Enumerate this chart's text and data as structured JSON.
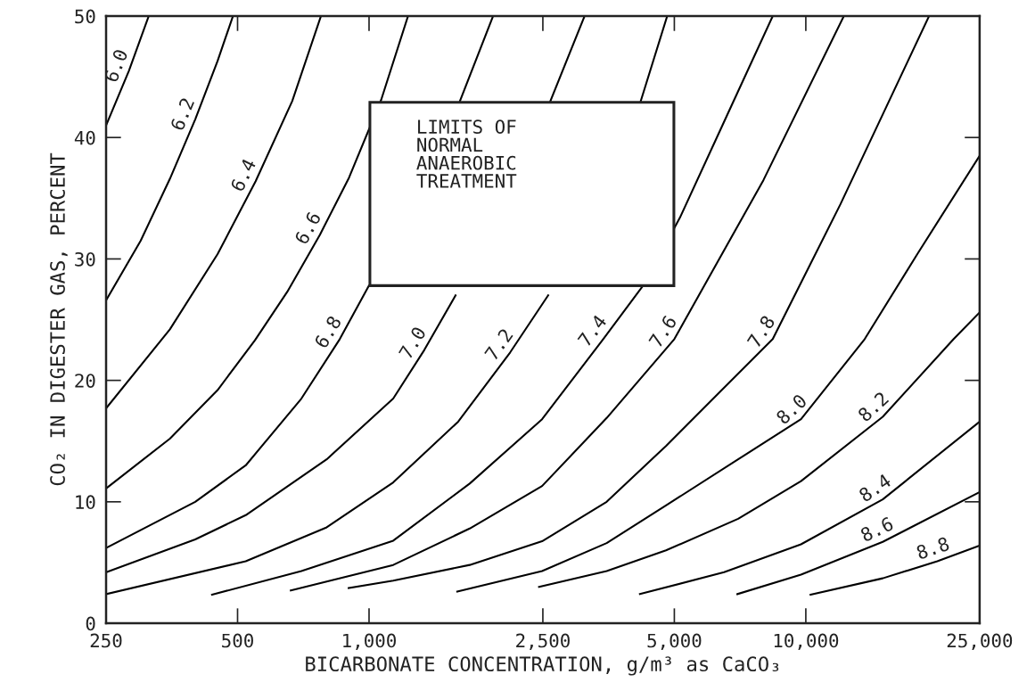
{
  "chart_data": {
    "type": "line",
    "xlabel": "BICARBONATE CONCENTRATION, g/m³ as CaCO₃",
    "ylabel": "CO₂ IN DIGESTER GAS, PERCENT",
    "log": "x",
    "xlim": [
      250,
      25000
    ],
    "xticks": [
      {
        "value": 250,
        "label": "250"
      },
      {
        "value": 500,
        "label": "500"
      },
      {
        "value": 1000,
        "label": "1,000"
      },
      {
        "value": 2500,
        "label": "2,500"
      },
      {
        "value": 5000,
        "label": "5,000"
      },
      {
        "value": 10000,
        "label": "10,000"
      },
      {
        "value": 25000,
        "label": "25,000"
      }
    ],
    "ylim": [
      0,
      50
    ],
    "yticks": [
      0,
      10,
      20,
      30,
      40,
      50
    ],
    "grid": false,
    "legend": false,
    "marker": "none",
    "line_style": "solid",
    "annotations": [
      "LIMITS OF\nNORMAL\nANAEROBIC\nTREATMENT"
    ],
    "series": [
      {
        "name": "6.0",
        "color": "#000000",
        "x": [
          250,
          282,
          313
        ],
        "values": [
          41.0,
          45.5,
          50
        ]
      },
      {
        "name": "6.2",
        "color": "#000000",
        "x": [
          250,
          300,
          350,
          400,
          450,
          488
        ],
        "values": [
          26.6,
          31.5,
          36.6,
          41.5,
          46.3,
          50
        ]
      },
      {
        "name": "6.4",
        "color": "#000000",
        "x": [
          250,
          350,
          450,
          550,
          667,
          776
        ],
        "values": [
          17.7,
          24.2,
          30.4,
          36.4,
          43.0,
          50
        ]
      },
      {
        "name": "6.6",
        "color": "#000000",
        "x": [
          250,
          350,
          450,
          548,
          650,
          772,
          900,
          1066,
          1228
        ],
        "values": [
          11.1,
          15.2,
          19.2,
          23.3,
          27.3,
          32.0,
          36.7,
          43.1,
          50
        ]
      },
      {
        "name": "6.8",
        "color": "#000000",
        "x": [
          250,
          400,
          522,
          700,
          857,
          999,
          1300,
          1611,
          1923
        ],
        "values": [
          6.2,
          10.0,
          13.0,
          18.5,
          23.4,
          27.8,
          null,
          42.9,
          50
        ]
      },
      {
        "name": "7.0",
        "color": "#000000",
        "x": [
          250,
          400,
          522,
          800,
          1136,
          1338,
          1578,
          2000,
          2595,
          3115
        ],
        "values": [
          4.2,
          6.9,
          8.9,
          13.5,
          18.5,
          22.5,
          27.0,
          null,
          42.9,
          50
        ]
      },
      {
        "name": "7.2",
        "color": "#000000",
        "x": [
          250,
          522,
          800,
          1136,
          1600,
          2104,
          2571,
          3300,
          4180,
          4815
        ],
        "values": [
          2.4,
          5.1,
          7.9,
          11.6,
          16.6,
          22.3,
          27.0,
          null,
          42.9,
          50
        ]
      },
      {
        "name": "7.4",
        "color": "#000000",
        "x": [
          437,
          700,
          1136,
          1700,
          2490,
          3437,
          4240,
          5150,
          6500,
          8400
        ],
        "values": [
          2.35,
          4.3,
          6.8,
          11.5,
          16.8,
          23.4,
          27.8,
          33.4,
          41.3,
          50
        ]
      },
      {
        "name": "7.6",
        "color": "#000000",
        "x": [
          662,
          1136,
          1700,
          2490,
          3500,
          5000,
          8000,
          12220
        ],
        "values": [
          2.7,
          4.8,
          7.8,
          11.3,
          16.9,
          23.4,
          36.5,
          50
        ]
      },
      {
        "name": "7.8",
        "color": "#000000",
        "x": [
          898,
          1136,
          1700,
          2490,
          3500,
          4785,
          6300,
          8400,
          12000,
          19150
        ],
        "values": [
          2.9,
          3.5,
          4.8,
          6.75,
          10.0,
          14.6,
          18.9,
          23.4,
          34.5,
          50
        ]
      },
      {
        "name": "8.0",
        "color": "#000000",
        "x": [
          1592,
          2490,
          3500,
          4785,
          7000,
          9750,
          13640,
          18000,
          25000
        ],
        "values": [
          2.6,
          4.3,
          6.6,
          9.7,
          13.5,
          16.8,
          23.4,
          30.4,
          38.5
        ]
      },
      {
        "name": "8.2",
        "color": "#000000",
        "x": [
          2450,
          3500,
          4785,
          7000,
          9750,
          15000,
          21800,
          25000
        ],
        "values": [
          3.0,
          4.3,
          6.0,
          8.6,
          11.7,
          17.0,
          23.4,
          25.6
        ]
      },
      {
        "name": "8.4",
        "color": "#000000",
        "x": [
          4170,
          6500,
          9750,
          15000,
          25000
        ],
        "values": [
          2.4,
          4.2,
          6.5,
          10.2,
          16.6
        ]
      },
      {
        "name": "8.6",
        "color": "#000000",
        "x": [
          6970,
          9750,
          15000,
          25000
        ],
        "values": [
          2.4,
          4.0,
          6.7,
          10.8
        ]
      },
      {
        "name": "8.8",
        "color": "#000000",
        "x": [
          10250,
          15000,
          20000,
          25000
        ],
        "values": [
          2.35,
          3.7,
          5.1,
          6.4
        ]
      }
    ]
  }
}
